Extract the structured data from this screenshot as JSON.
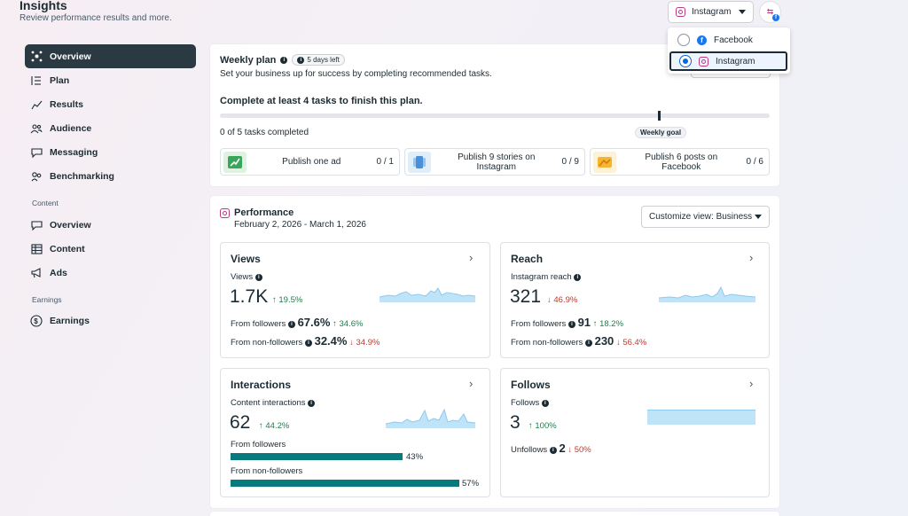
{
  "header": {
    "title": "Insights",
    "subtitle": "Review performance results and more."
  },
  "account_switcher": {
    "selected": "Instagram",
    "options": [
      {
        "label": "Facebook",
        "selected": false
      },
      {
        "label": "Instagram",
        "selected": true
      }
    ]
  },
  "sidebar": {
    "items": [
      {
        "label": "Overview",
        "icon": "overview-icon",
        "active": true
      },
      {
        "label": "Plan",
        "icon": "plan-list-icon"
      },
      {
        "label": "Results",
        "icon": "results-trend-icon"
      },
      {
        "label": "Audience",
        "icon": "audience-people-icon"
      },
      {
        "label": "Messaging",
        "icon": "messaging-bubble-icon"
      },
      {
        "label": "Benchmarking",
        "icon": "benchmarking-icon"
      }
    ],
    "content_section": "Content",
    "content_items": [
      {
        "label": "Overview",
        "icon": "content-overview-icon"
      },
      {
        "label": "Content",
        "icon": "content-table-icon"
      },
      {
        "label": "Ads",
        "icon": "ads-megaphone-icon"
      }
    ],
    "earnings_section": "Earnings",
    "earnings_items": [
      {
        "label": "Earnings",
        "icon": "dollar-icon"
      }
    ]
  },
  "weekly_plan": {
    "title": "Weekly plan",
    "days_left": "5 days left",
    "description": "Set your business up for success by completing recommended tasks.",
    "goal_text": "Complete at least 4 tasks to finish this plan.",
    "progress_text": "0 of 5 tasks completed",
    "progress_fraction": 0,
    "goal_label": "Weekly goal",
    "goal_fraction": 0.8,
    "tasks": [
      {
        "label": "Publish one ad",
        "count": "0 / 1",
        "icon": "ad-trend-icon"
      },
      {
        "label": "Publish 9 stories on Instagram",
        "count": "0 / 9",
        "icon": "stories-icon"
      },
      {
        "label": "Publish 6 posts on Facebook",
        "count": "0 / 6",
        "icon": "posts-icon"
      }
    ]
  },
  "performance": {
    "title": "Performance",
    "date_range": "February 2, 2026 - March 1, 2026",
    "customize_label": "Customize view: Business",
    "views": {
      "title": "Views",
      "sub": "Views",
      "value": "1.7K",
      "change": "19.5%",
      "from_followers_label": "From followers",
      "from_followers_value": "67.6%",
      "from_followers_change": "34.6%",
      "from_non_followers_label": "From non-followers",
      "from_non_followers_value": "32.4%",
      "from_non_followers_change": "34.9%"
    },
    "reach": {
      "title": "Reach",
      "sub": "Instagram reach",
      "value": "321",
      "change": "46.9%",
      "from_followers_label": "From followers",
      "from_followers_value": "91",
      "from_followers_change": "18.2%",
      "from_non_followers_label": "From non-followers",
      "from_non_followers_value": "230",
      "from_non_followers_change": "56.4%"
    },
    "interactions": {
      "title": "Interactions",
      "sub": "Content interactions",
      "value": "62",
      "change": "44.2%",
      "from_followers_label": "From followers",
      "from_followers_pct": "43%",
      "from_followers_fraction": 0.43,
      "from_non_followers_label": "From non-followers",
      "from_non_followers_pct": "57%",
      "from_non_followers_fraction": 0.57
    },
    "follows": {
      "title": "Follows",
      "sub": "Follows",
      "value": "3",
      "change": "100%",
      "unfollows_label": "Unfollows",
      "unfollows_value": "2",
      "unfollows_change": "50%"
    }
  },
  "colors": {
    "accent_dark": "#2b3942",
    "up": "#1e7e4a",
    "down": "#c0392b",
    "teal_bar": "#067a7c",
    "sparkline_fill": "#bfe3f7",
    "instagram": "#c13584",
    "facebook": "#1877f2"
  }
}
